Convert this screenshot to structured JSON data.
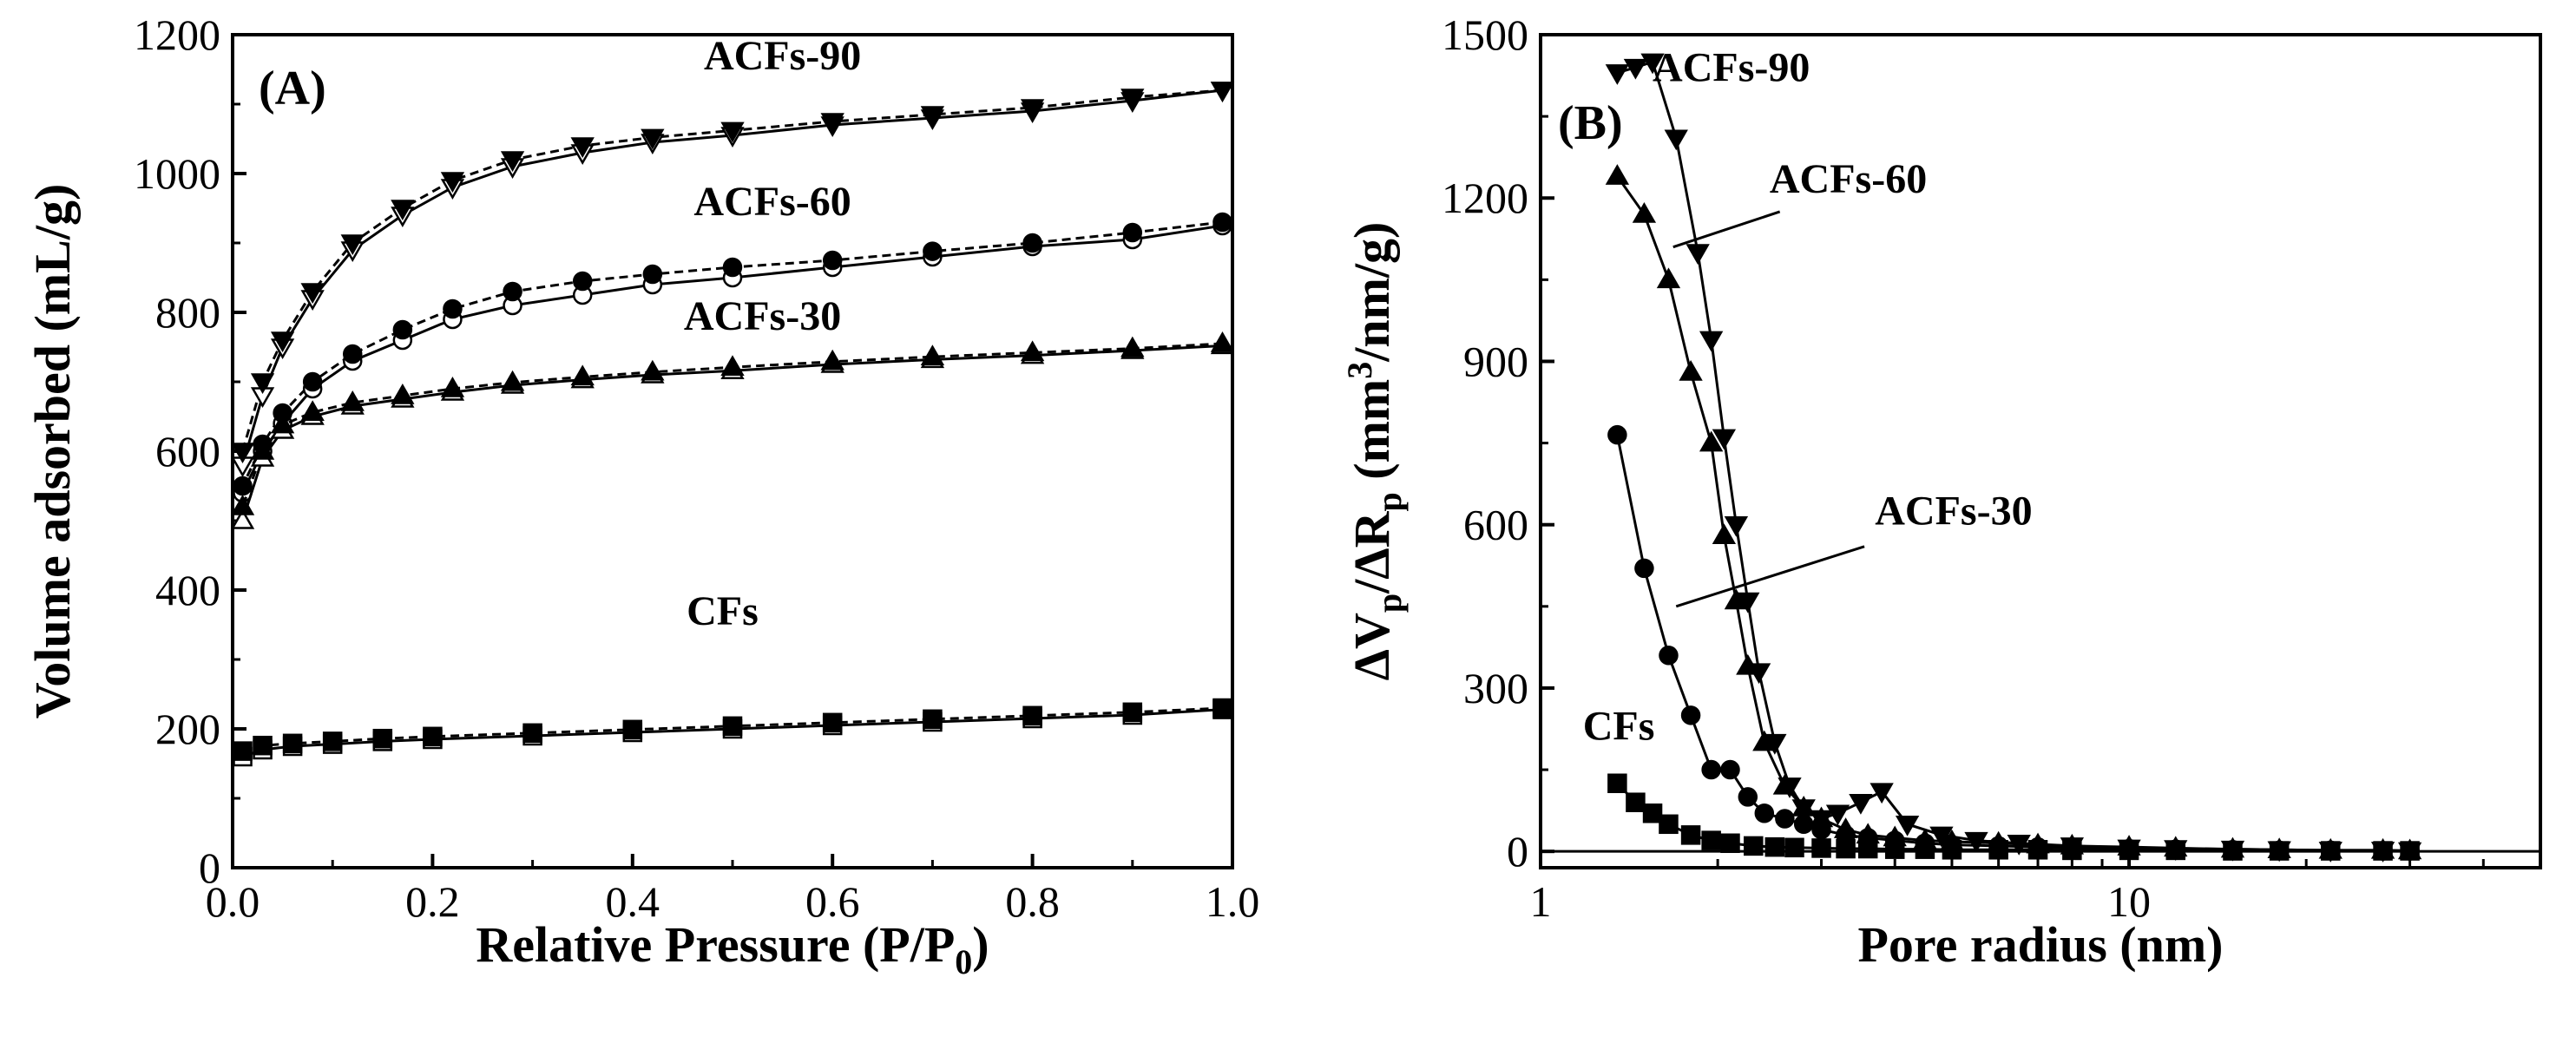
{
  "chart_data": [
    {
      "type": "scatter",
      "panel": "(A)",
      "xlabel": "Relative Pressure (P/P0)",
      "xlabel_main": "Relative Pressure (P/P",
      "xlabel_sub": "0",
      "xlabel_end": ")",
      "ylabel": "Volume adsorbed (mL/g)",
      "xlim": [
        0.0,
        1.0
      ],
      "ylim": [
        0,
        1200
      ],
      "xticks": [
        "0.0",
        "0.2",
        "0.4",
        "0.6",
        "0.8",
        "1.0"
      ],
      "yticks": [
        "0",
        "200",
        "400",
        "600",
        "800",
        "1000",
        "1200"
      ],
      "series": [
        {
          "name": "ACFs-90",
          "marker": "triangle-down",
          "label_pos": [
            0.55,
            1150
          ],
          "adsorption": [
            [
              0.01,
              580
            ],
            [
              0.03,
              680
            ],
            [
              0.05,
              750
            ],
            [
              0.08,
              820
            ],
            [
              0.12,
              890
            ],
            [
              0.17,
              940
            ],
            [
              0.22,
              980
            ],
            [
              0.28,
              1010
            ],
            [
              0.35,
              1030
            ],
            [
              0.42,
              1045
            ],
            [
              0.5,
              1055
            ],
            [
              0.6,
              1070
            ],
            [
              0.7,
              1080
            ],
            [
              0.8,
              1090
            ],
            [
              0.9,
              1105
            ],
            [
              0.99,
              1120
            ]
          ],
          "desorption": [
            [
              0.99,
              1120
            ],
            [
              0.9,
              1110
            ],
            [
              0.8,
              1095
            ],
            [
              0.7,
              1085
            ],
            [
              0.6,
              1075
            ],
            [
              0.5,
              1062
            ],
            [
              0.42,
              1052
            ],
            [
              0.35,
              1040
            ],
            [
              0.28,
              1020
            ],
            [
              0.22,
              990
            ],
            [
              0.17,
              950
            ],
            [
              0.12,
              900
            ],
            [
              0.08,
              830
            ],
            [
              0.05,
              760
            ],
            [
              0.03,
              700
            ],
            [
              0.01,
              600
            ]
          ]
        },
        {
          "name": "ACFs-60",
          "marker": "circle",
          "label_pos": [
            0.54,
            940
          ],
          "adsorption": [
            [
              0.01,
              540
            ],
            [
              0.03,
              600
            ],
            [
              0.05,
              640
            ],
            [
              0.08,
              690
            ],
            [
              0.12,
              730
            ],
            [
              0.17,
              760
            ],
            [
              0.22,
              790
            ],
            [
              0.28,
              810
            ],
            [
              0.35,
              825
            ],
            [
              0.42,
              840
            ],
            [
              0.5,
              850
            ],
            [
              0.6,
              865
            ],
            [
              0.7,
              880
            ],
            [
              0.8,
              895
            ],
            [
              0.9,
              905
            ],
            [
              0.99,
              925
            ]
          ],
          "desorption": [
            [
              0.99,
              930
            ],
            [
              0.9,
              915
            ],
            [
              0.8,
              900
            ],
            [
              0.7,
              888
            ],
            [
              0.6,
              875
            ],
            [
              0.5,
              865
            ],
            [
              0.42,
              855
            ],
            [
              0.35,
              845
            ],
            [
              0.28,
              830
            ],
            [
              0.22,
              805
            ],
            [
              0.17,
              775
            ],
            [
              0.12,
              740
            ],
            [
              0.08,
              700
            ],
            [
              0.05,
              655
            ],
            [
              0.03,
              610
            ],
            [
              0.01,
              550
            ]
          ]
        },
        {
          "name": "ACFs-30",
          "marker": "triangle-up",
          "label_pos": [
            0.53,
            775
          ],
          "adsorption": [
            [
              0.01,
              500
            ],
            [
              0.03,
              590
            ],
            [
              0.05,
              630
            ],
            [
              0.08,
              650
            ],
            [
              0.12,
              665
            ],
            [
              0.17,
              675
            ],
            [
              0.22,
              685
            ],
            [
              0.28,
              695
            ],
            [
              0.35,
              703
            ],
            [
              0.42,
              710
            ],
            [
              0.5,
              716
            ],
            [
              0.6,
              725
            ],
            [
              0.7,
              732
            ],
            [
              0.8,
              738
            ],
            [
              0.9,
              745
            ],
            [
              0.99,
              752
            ]
          ],
          "desorption": [
            [
              0.99,
              755
            ],
            [
              0.9,
              748
            ],
            [
              0.8,
              742
            ],
            [
              0.7,
              736
            ],
            [
              0.6,
              729
            ],
            [
              0.5,
              721
            ],
            [
              0.42,
              714
            ],
            [
              0.35,
              707
            ],
            [
              0.28,
              699
            ],
            [
              0.22,
              690
            ],
            [
              0.17,
              680
            ],
            [
              0.12,
              670
            ],
            [
              0.08,
              656
            ],
            [
              0.05,
              638
            ],
            [
              0.03,
              600
            ],
            [
              0.01,
              520
            ]
          ]
        },
        {
          "name": "CFs",
          "marker": "square",
          "label_pos": [
            0.49,
            350
          ],
          "adsorption": [
            [
              0.01,
              160
            ],
            [
              0.03,
              170
            ],
            [
              0.06,
              175
            ],
            [
              0.1,
              178
            ],
            [
              0.15,
              182
            ],
            [
              0.2,
              185
            ],
            [
              0.3,
              190
            ],
            [
              0.4,
              195
            ],
            [
              0.5,
              200
            ],
            [
              0.6,
              205
            ],
            [
              0.7,
              210
            ],
            [
              0.8,
              215
            ],
            [
              0.9,
              220
            ],
            [
              0.99,
              228
            ]
          ],
          "desorption": [
            [
              0.99,
              230
            ],
            [
              0.9,
              224
            ],
            [
              0.8,
              219
            ],
            [
              0.7,
              214
            ],
            [
              0.6,
              209
            ],
            [
              0.5,
              204
            ],
            [
              0.4,
              199
            ],
            [
              0.3,
              194
            ],
            [
              0.2,
              189
            ],
            [
              0.15,
              186
            ],
            [
              0.1,
              182
            ],
            [
              0.06,
              179
            ],
            [
              0.03,
              176
            ],
            [
              0.01,
              168
            ]
          ]
        }
      ]
    },
    {
      "type": "line",
      "panel": "(B)",
      "xlabel": "Pore radius (nm)",
      "ylabel": "ΔVp/ΔRp (mm3/nm/g)",
      "ylabel_parts": [
        "ΔV",
        "p",
        "/ΔR",
        "p",
        " (mm",
        "3",
        "/nm/g)"
      ],
      "xscale": "log",
      "xlim": [
        1,
        50
      ],
      "ylim": [
        -30,
        1500
      ],
      "xticks": [
        "1",
        "10"
      ],
      "yticks": [
        "0",
        "300",
        "600",
        "900",
        "1200",
        "1500"
      ],
      "series": [
        {
          "name": "ACFs-90",
          "marker": "triangle-down",
          "label_pos": [
            1.6,
            1420
          ],
          "points": [
            [
              1.35,
              1430
            ],
            [
              1.45,
              1440
            ],
            [
              1.55,
              1450
            ],
            [
              1.7,
              1310
            ],
            [
              1.85,
              1100
            ],
            [
              1.95,
              940
            ],
            [
              2.05,
              760
            ],
            [
              2.15,
              600
            ],
            [
              2.25,
              460
            ],
            [
              2.35,
              330
            ],
            [
              2.5,
              200
            ],
            [
              2.65,
              120
            ],
            [
              2.8,
              80
            ],
            [
              3.0,
              60
            ],
            [
              3.2,
              70
            ],
            [
              3.5,
              90
            ],
            [
              3.8,
              110
            ],
            [
              4.2,
              50
            ],
            [
              4.8,
              30
            ],
            [
              5.5,
              20
            ],
            [
              6.5,
              15
            ],
            [
              8,
              10
            ],
            [
              10,
              6
            ],
            [
              12,
              5
            ],
            [
              15,
              4
            ],
            [
              18,
              3
            ],
            [
              22,
              2
            ],
            [
              27,
              2
            ],
            [
              30,
              1
            ]
          ]
        },
        {
          "name": "ACFs-60",
          "marker": "triangle-up",
          "label_pos": [
            2.5,
            1210
          ],
          "points": [
            [
              1.35,
              1240
            ],
            [
              1.5,
              1170
            ],
            [
              1.65,
              1050
            ],
            [
              1.8,
              880
            ],
            [
              1.95,
              750
            ],
            [
              2.05,
              580
            ],
            [
              2.15,
              460
            ],
            [
              2.25,
              340
            ],
            [
              2.4,
              200
            ],
            [
              2.6,
              120
            ],
            [
              2.8,
              80
            ],
            [
              3.0,
              60
            ],
            [
              3.3,
              40
            ],
            [
              3.6,
              30
            ],
            [
              4.0,
              25
            ],
            [
              4.5,
              20
            ],
            [
              5.0,
              18
            ],
            [
              6,
              15
            ],
            [
              7,
              12
            ],
            [
              8,
              10
            ],
            [
              10,
              8
            ],
            [
              12,
              6
            ],
            [
              15,
              4
            ],
            [
              18,
              3
            ],
            [
              22,
              2
            ],
            [
              27,
              2
            ],
            [
              30,
              1
            ]
          ]
        },
        {
          "name": "ACFs-30",
          "marker": "circle",
          "label_pos": [
            3.8,
            600
          ],
          "points": [
            [
              1.35,
              765
            ],
            [
              1.5,
              520
            ],
            [
              1.65,
              360
            ],
            [
              1.8,
              250
            ],
            [
              1.95,
              150
            ],
            [
              2.1,
              150
            ],
            [
              2.25,
              100
            ],
            [
              2.4,
              70
            ],
            [
              2.6,
              60
            ],
            [
              2.8,
              50
            ],
            [
              3.0,
              40
            ],
            [
              3.3,
              30
            ],
            [
              3.6,
              25
            ],
            [
              4.0,
              20
            ],
            [
              4.5,
              15
            ],
            [
              5,
              12
            ],
            [
              6,
              10
            ],
            [
              7,
              8
            ],
            [
              8,
              6
            ],
            [
              10,
              5
            ],
            [
              12,
              4
            ],
            [
              15,
              3
            ],
            [
              18,
              2
            ],
            [
              22,
              2
            ],
            [
              27,
              1
            ],
            [
              30,
              1
            ]
          ]
        },
        {
          "name": "CFs",
          "marker": "square",
          "label_pos": [
            1.18,
            190
          ],
          "points": [
            [
              1.35,
              125
            ],
            [
              1.45,
              90
            ],
            [
              1.55,
              70
            ],
            [
              1.65,
              50
            ],
            [
              1.8,
              30
            ],
            [
              1.95,
              20
            ],
            [
              2.1,
              15
            ],
            [
              2.3,
              10
            ],
            [
              2.5,
              8
            ],
            [
              2.7,
              7
            ],
            [
              3.0,
              6
            ],
            [
              3.3,
              5
            ],
            [
              3.6,
              5
            ],
            [
              4.0,
              4
            ],
            [
              4.5,
              4
            ],
            [
              5,
              3
            ],
            [
              6,
              3
            ],
            [
              7,
              3
            ],
            [
              8,
              2
            ],
            [
              10,
              2
            ],
            [
              12,
              2
            ],
            [
              15,
              1
            ],
            [
              18,
              1
            ],
            [
              22,
              1
            ],
            [
              27,
              1
            ],
            [
              30,
              1
            ]
          ]
        }
      ]
    }
  ]
}
